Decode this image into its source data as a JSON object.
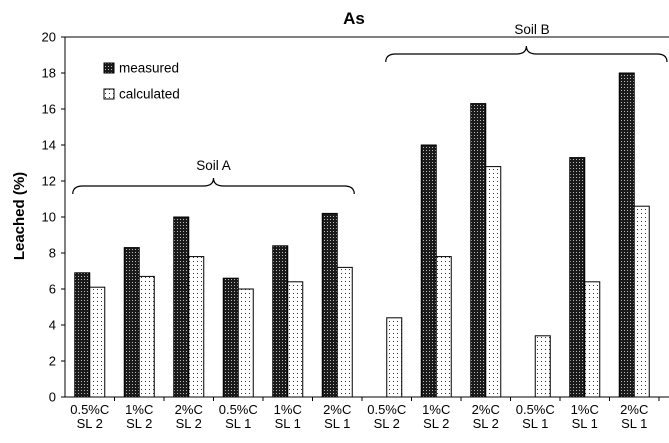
{
  "chart_data": {
    "type": "bar",
    "title": "As",
    "ylabel": "Leached (%)",
    "xlabel": "",
    "ylim": [
      0,
      20
    ],
    "y_ticks": [
      "0",
      "2",
      "4",
      "6",
      "8",
      "10",
      "12",
      "14",
      "16",
      "18",
      "20"
    ],
    "categories": [
      [
        "0.5%C",
        "SL 2"
      ],
      [
        "1%C",
        "SL 2"
      ],
      [
        "2%C",
        "SL 2"
      ],
      [
        "0.5%C",
        "SL 1"
      ],
      [
        "1%C",
        "SL 1"
      ],
      [
        "2%C",
        "SL 1"
      ],
      [
        "0.5%C",
        "SL 2"
      ],
      [
        "1%C",
        "SL 2"
      ],
      [
        "2%C",
        "SL 2"
      ],
      [
        "0.5%C",
        "SL 1"
      ],
      [
        "1%C",
        "SL 1"
      ],
      [
        "2%C",
        "SL 1"
      ]
    ],
    "series": [
      {
        "name": "measured",
        "pattern": "dark-dotted",
        "values": [
          6.9,
          8.3,
          10.0,
          6.6,
          8.4,
          10.2,
          null,
          14.0,
          16.3,
          null,
          13.3,
          18.0
        ]
      },
      {
        "name": "calculated",
        "pattern": "light-dotted",
        "values": [
          6.1,
          6.7,
          7.8,
          6.0,
          6.4,
          7.2,
          4.4,
          7.8,
          12.8,
          3.4,
          6.4,
          10.6
        ]
      }
    ],
    "groups": [
      {
        "label": "Soil  A",
        "from": 0,
        "to": 5
      },
      {
        "label": "Soil  B",
        "from": 6,
        "to": 11
      }
    ],
    "legend": {
      "position": "top-left"
    },
    "grid": false
  }
}
